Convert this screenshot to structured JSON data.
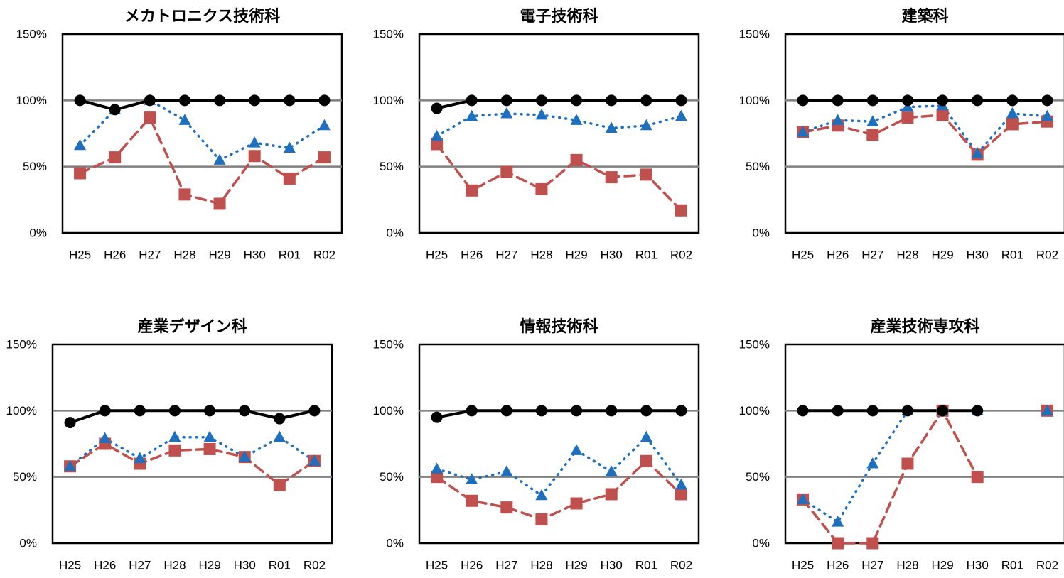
{
  "colors": {
    "black_series": "#000000",
    "blue_series": "#1f6fbf",
    "red_series": "#c0504d",
    "gridline": "#808080"
  },
  "chart_data": [
    {
      "type": "line",
      "title": "メカトロニクス技術科",
      "categories": [
        "H25",
        "H26",
        "H27",
        "H28",
        "H29",
        "H30",
        "R01",
        "R02"
      ],
      "y_ticks": [
        "0%",
        "50%",
        "100%",
        "150%"
      ],
      "ylim": [
        0,
        150
      ],
      "grid": true,
      "series": [
        {
          "values": [
            100,
            93,
            100,
            100,
            100,
            100,
            100,
            100
          ]
        },
        {
          "values": [
            66,
            93,
            100,
            85,
            55,
            68,
            64,
            81
          ]
        },
        {
          "values": [
            45,
            57,
            87,
            29,
            22,
            58,
            41,
            57
          ]
        }
      ]
    },
    {
      "type": "line",
      "title": "電子技術科",
      "categories": [
        "H25",
        "H26",
        "H27",
        "H28",
        "H29",
        "H30",
        "R01",
        "R02"
      ],
      "y_ticks": [
        "0%",
        "50%",
        "100%",
        "150%"
      ],
      "ylim": [
        0,
        150
      ],
      "grid": true,
      "series": [
        {
          "values": [
            94,
            100,
            100,
            100,
            100,
            100,
            100,
            100
          ]
        },
        {
          "values": [
            73,
            88,
            90,
            89,
            85,
            79,
            81,
            88
          ]
        },
        {
          "values": [
            67,
            32,
            46,
            33,
            55,
            42,
            44,
            17
          ]
        }
      ]
    },
    {
      "type": "line",
      "title": "建築科",
      "categories": [
        "H25",
        "H26",
        "H27",
        "H28",
        "H29",
        "H30",
        "R01",
        "R02"
      ],
      "y_ticks": [
        "0%",
        "50%",
        "100%",
        "150%"
      ],
      "ylim": [
        0,
        150
      ],
      "grid": true,
      "series": [
        {
          "values": [
            100,
            100,
            100,
            100,
            100,
            100,
            100,
            100
          ]
        },
        {
          "values": [
            76,
            85,
            84,
            95,
            96,
            60,
            90,
            88
          ]
        },
        {
          "values": [
            76,
            81,
            74,
            87,
            89,
            59,
            82,
            84
          ]
        }
      ]
    },
    {
      "type": "line",
      "title": "産業デザイン科",
      "categories": [
        "H25",
        "H26",
        "H27",
        "H28",
        "H29",
        "H30",
        "R01",
        "R02"
      ],
      "y_ticks": [
        "0%",
        "50%",
        "100%",
        "150%"
      ],
      "ylim": [
        0,
        150
      ],
      "grid": true,
      "series": [
        {
          "values": [
            91,
            100,
            100,
            100,
            100,
            100,
            94,
            100
          ]
        },
        {
          "values": [
            58,
            79,
            64,
            80,
            80,
            65,
            80,
            62
          ]
        },
        {
          "values": [
            58,
            75,
            60,
            70,
            71,
            65,
            44,
            62
          ]
        }
      ]
    },
    {
      "type": "line",
      "title": "情報技術科",
      "categories": [
        "H25",
        "H26",
        "H27",
        "H28",
        "H29",
        "H30",
        "R01",
        "R02"
      ],
      "y_ticks": [
        "0%",
        "50%",
        "100%",
        "150%"
      ],
      "ylim": [
        0,
        150
      ],
      "grid": true,
      "series": [
        {
          "values": [
            95,
            100,
            100,
            100,
            100,
            100,
            100,
            100
          ]
        },
        {
          "values": [
            56,
            48,
            54,
            36,
            70,
            54,
            80,
            44
          ]
        },
        {
          "values": [
            50,
            32,
            27,
            18,
            30,
            37,
            62,
            37
          ]
        }
      ]
    },
    {
      "type": "line",
      "title": "産業技術専攻科",
      "categories": [
        "H25",
        "H26",
        "H27",
        "H28",
        "H29",
        "H30",
        "R01",
        "R02"
      ],
      "y_ticks": [
        "0%",
        "50%",
        "100%",
        "150%"
      ],
      "ylim": [
        0,
        150
      ],
      "grid": true,
      "series": [
        {
          "values": [
            100,
            100,
            100,
            100,
            100,
            100,
            null,
            null
          ]
        },
        {
          "values": [
            33,
            16,
            60,
            100,
            100,
            100,
            null,
            100
          ]
        },
        {
          "values": [
            33,
            0,
            0,
            60,
            100,
            50,
            null,
            100
          ]
        }
      ]
    }
  ]
}
